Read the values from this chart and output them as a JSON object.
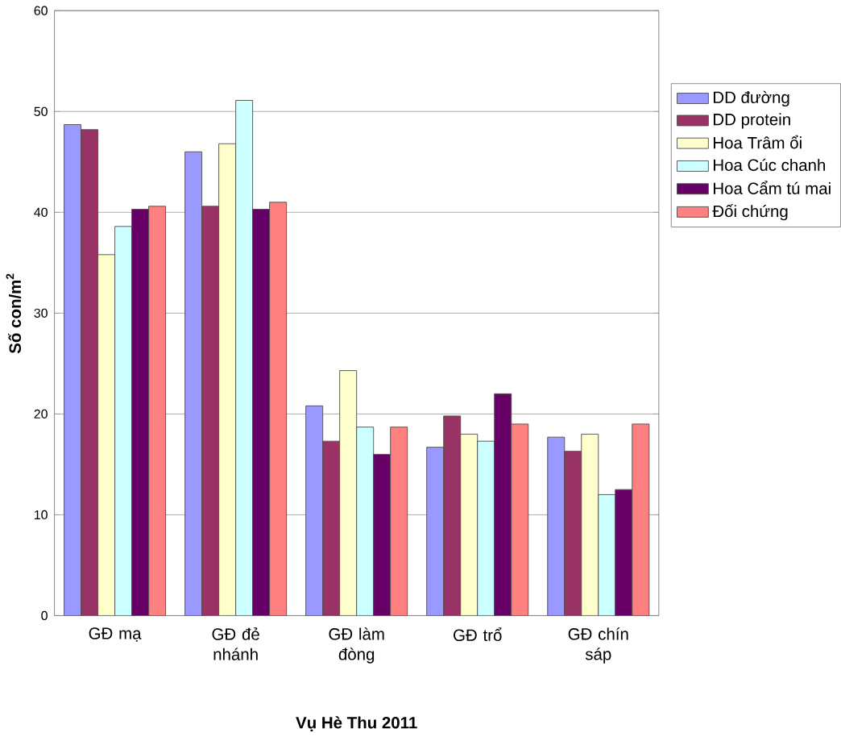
{
  "chart_data": {
    "type": "bar",
    "xlabel": "Vụ Hè Thu 2011",
    "ylabel": "Số con/m$^{2}$",
    "categories": [
      "GĐ mạ",
      "GĐ đẻ nhánh",
      "GĐ làm đòng",
      "GĐ trổ",
      "GĐ chín sáp"
    ],
    "series": [
      {
        "name": "DD đường",
        "color": "#9999ff",
        "values": [
          48.7,
          46,
          20.8,
          16.7,
          17.7
        ]
      },
      {
        "name": "DD protein",
        "color": "#993366",
        "values": [
          48.2,
          40.6,
          17.3,
          19.8,
          16.3
        ]
      },
      {
        "name": "Hoa Trâm ổi",
        "color": "#ffffcc",
        "values": [
          35.8,
          46.8,
          24.3,
          18,
          18
        ]
      },
      {
        "name": "Hoa Cúc chanh",
        "color": "#ccffff",
        "values": [
          38.6,
          51.1,
          18.7,
          17.3,
          12
        ]
      },
      {
        "name": "Hoa Cẩm tú mai",
        "color": "#660066",
        "values": [
          40.3,
          40.3,
          16,
          22,
          12.5
        ]
      },
      {
        "name": "Đối chứng",
        "color": "#ff8080",
        "values": [
          40.6,
          41,
          18.7,
          19,
          19
        ]
      }
    ],
    "ylim": [
      0,
      60
    ],
    "yticks": [
      0,
      10,
      20,
      30,
      40,
      50,
      60
    ],
    "grid": "y",
    "legend": "right"
  }
}
